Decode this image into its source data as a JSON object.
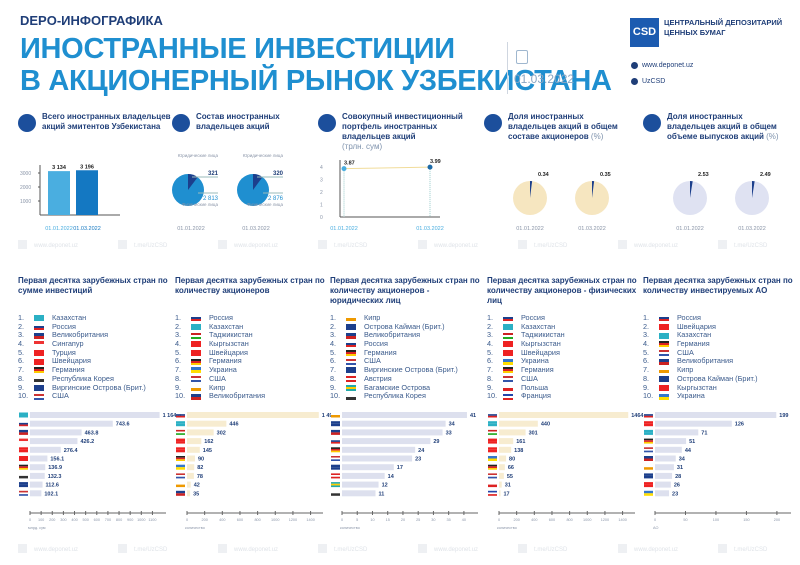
{
  "header": {
    "kicker": "DEPO-ИНФОГРАФИКА",
    "title_line1": "ИНОСТРАННЫЕ ИНВЕСТИЦИИ",
    "title_line2": "В АКЦИОНЕРНЫЙ РЫНОК  УЗБЕКИСТАНА",
    "date": "01.03.2022",
    "logo_mark": "CSD",
    "org_name_line1": "ЦЕНТРАЛЬНЫЙ ДЕПОЗИТАРИЙ",
    "org_name_line2": "ЦЕННЫХ БУМАГ",
    "website": "www.deponet.uz",
    "telegram": "UzCSD"
  },
  "watermarks": [
    "www.deponet.uz",
    "t.me/UzCSD"
  ],
  "colors": {
    "title": "#1f8fd0",
    "navy": "#1f3e78",
    "bar_blue": "#dde0ee",
    "bar_cream": "#f7ecd0",
    "pie_blue": "#1f8fd0",
    "pie_dark": "#1c3f8c"
  },
  "sections": {
    "total": {
      "title": "Всего иностранных владельцев акций эмитентов Узбекистана"
    },
    "composition": {
      "title": "Состав иностранных владельцев акций"
    },
    "portfolio": {
      "title": "Совокупный инвестиционный портфель иностранных владельцев акций",
      "unit": "(трлн. сум)"
    },
    "share_holders": {
      "title": "Доля иностранных владельцев акций в общем составе акционеров",
      "unit": "(%)"
    },
    "share_volume": {
      "title": "Доля иностранных владельцев акций в общем объеме выпусков акций",
      "unit": "(%)"
    }
  },
  "chart_data": [
    {
      "id": "total",
      "type": "bar",
      "categories": [
        "01.01.2022",
        "01.03.2022"
      ],
      "values": [
        3134,
        3196
      ],
      "value_labels": [
        "3 134",
        "3 196"
      ],
      "yticks": [
        "1000",
        "2000",
        "3000"
      ],
      "ylim": [
        0,
        3500
      ],
      "colors": [
        "#4aaee0",
        "#1478c2"
      ]
    },
    {
      "id": "composition",
      "type": "pie",
      "charts": [
        {
          "date": "01.01.2022",
          "legal": 321,
          "legal_label": "Юридические лица",
          "individual": 2813,
          "individual_text": "2 813",
          "individual_label": "Физические лица"
        },
        {
          "date": "01.03.2022",
          "legal": 320,
          "legal_label": "Юридические лица",
          "individual": 2876,
          "individual_text": "2 876",
          "individual_label": "Физические лица"
        }
      ]
    },
    {
      "id": "portfolio",
      "type": "line",
      "x": [
        "01.01.2022",
        "01.03.2022"
      ],
      "y": [
        3.87,
        3.99
      ],
      "yticks": [
        "0",
        "1",
        "2",
        "3",
        "4"
      ],
      "ylim": [
        0,
        4.5
      ]
    },
    {
      "id": "share_holders",
      "type": "pie",
      "charts": [
        {
          "date": "01.01.2022",
          "value": 0.34,
          "label": "0.34"
        },
        {
          "date": "01.03.2022",
          "value": 0.35,
          "label": "0.35"
        }
      ],
      "color": "#f6e6c0"
    },
    {
      "id": "share_volume",
      "type": "pie",
      "charts": [
        {
          "date": "01.01.2022",
          "value": 2.53,
          "label": "2.53"
        },
        {
          "date": "01.03.2022",
          "value": 2.49,
          "label": "2.49"
        }
      ],
      "color": "#dfe2f2"
    },
    {
      "id": "top_investment",
      "type": "bar",
      "orientation": "horizontal",
      "title": "Первая десятка зарубежных стран по сумме инвестиций",
      "categories": [
        "Казахстан",
        "Россия",
        "Великобритания",
        "Сингапур",
        "Турция",
        "Швейцария",
        "Германия",
        "Республика Корея",
        "Виргинские Острова (Брит.)",
        "США"
      ],
      "values": [
        1164.3,
        743.6,
        463.8,
        426.2,
        276.4,
        156.1,
        136.9,
        132.3,
        112.6,
        102.1
      ],
      "value_labels": [
        "1 164.3",
        "743.6",
        "463.8",
        "426.2",
        "276.4",
        "156.1",
        "136.9",
        "132.3",
        "112.6",
        "102.1"
      ],
      "xticks": [
        0,
        100,
        200,
        300,
        400,
        500,
        600,
        700,
        800,
        900,
        1000,
        1100
      ],
      "xlim": [
        0,
        1150
      ],
      "xlabel": "млрд. сум",
      "bar_color": "#dde0ee"
    },
    {
      "id": "top_holders",
      "type": "bar",
      "orientation": "horizontal",
      "title": "Первая десятка зарубежных стран по количеству акционеров",
      "categories": [
        "Россия",
        "Казахстан",
        "Таджикистан",
        "Кыргызстан",
        "Швейцария",
        "Германия",
        "Украина",
        "США",
        "Кипр",
        "Великобритания"
      ],
      "values": [
        1493,
        446,
        302,
        162,
        145,
        90,
        82,
        78,
        42,
        35
      ],
      "value_labels": [
        "1 493",
        "446",
        "302",
        "162",
        "145",
        "90",
        "82",
        "78",
        "42",
        "35"
      ],
      "xticks": [
        0,
        200,
        400,
        600,
        800,
        1000,
        1200,
        1400
      ],
      "xlim": [
        0,
        1450
      ],
      "xlabel": "количество",
      "bar_color": "#f7ecd0"
    },
    {
      "id": "top_legal",
      "type": "bar",
      "orientation": "horizontal",
      "title": "Первая десятка зарубежных стран по количеству акционеров - юридических лиц",
      "categories": [
        "Кипр",
        "Острова Кайман (Брит.)",
        "Великобритания",
        "Россия",
        "Германия",
        "США",
        "Виргинские Острова (Брит.)",
        "Австрия",
        "Багамские Острова",
        "Республика Корея"
      ],
      "values": [
        41,
        34,
        33,
        29,
        24,
        23,
        17,
        14,
        12,
        11
      ],
      "value_labels": [
        "41",
        "34",
        "33",
        "29",
        "24",
        "23",
        "17",
        "14",
        "12",
        "11"
      ],
      "xticks": [
        0,
        5,
        10,
        15,
        20,
        25,
        30,
        35,
        40
      ],
      "xlim": [
        0,
        42
      ],
      "xlabel": "количество",
      "bar_color": "#dde0ee"
    },
    {
      "id": "top_individual",
      "type": "bar",
      "orientation": "horizontal",
      "title": "Первая десятка зарубежных стран по количеству акционеров - физических лиц",
      "categories": [
        "Россия",
        "Казахстан",
        "Таджикистан",
        "Кыргызстан",
        "Швейцария",
        "Украина",
        "Германия",
        "США",
        "Польша",
        "Франция"
      ],
      "values": [
        1464,
        440,
        301,
        161,
        138,
        80,
        66,
        55,
        31,
        17
      ],
      "value_labels": [
        "1464",
        "440",
        "301",
        "161",
        "138",
        "80",
        "66",
        "55",
        "31",
        "17"
      ],
      "xticks": [
        0,
        200,
        400,
        600,
        800,
        1000,
        1200,
        1400
      ],
      "xlim": [
        0,
        1450
      ],
      "xlabel": "количество",
      "bar_color": "#f7ecd0"
    },
    {
      "id": "top_companies",
      "type": "bar",
      "orientation": "horizontal",
      "title": "Первая десятка зарубежных стран по количеству инвестируемых АО",
      "categories": [
        "Россия",
        "Швейцария",
        "Казахстан",
        "Германия",
        "США",
        "Великобритания",
        "Кипр",
        "Острова Кайман (Брит.)",
        "Кыргызстан",
        "Украина"
      ],
      "values": [
        199,
        126,
        71,
        51,
        44,
        34,
        31,
        28,
        26,
        23
      ],
      "value_labels": [
        "199",
        "126",
        "71",
        "51",
        "44",
        "34",
        "31",
        "28",
        "26",
        "23"
      ],
      "xticks": [
        0,
        50,
        100,
        150,
        200
      ],
      "xlim": [
        0,
        210
      ],
      "xlabel": "АО",
      "bar_color": "#dde0ee"
    }
  ]
}
